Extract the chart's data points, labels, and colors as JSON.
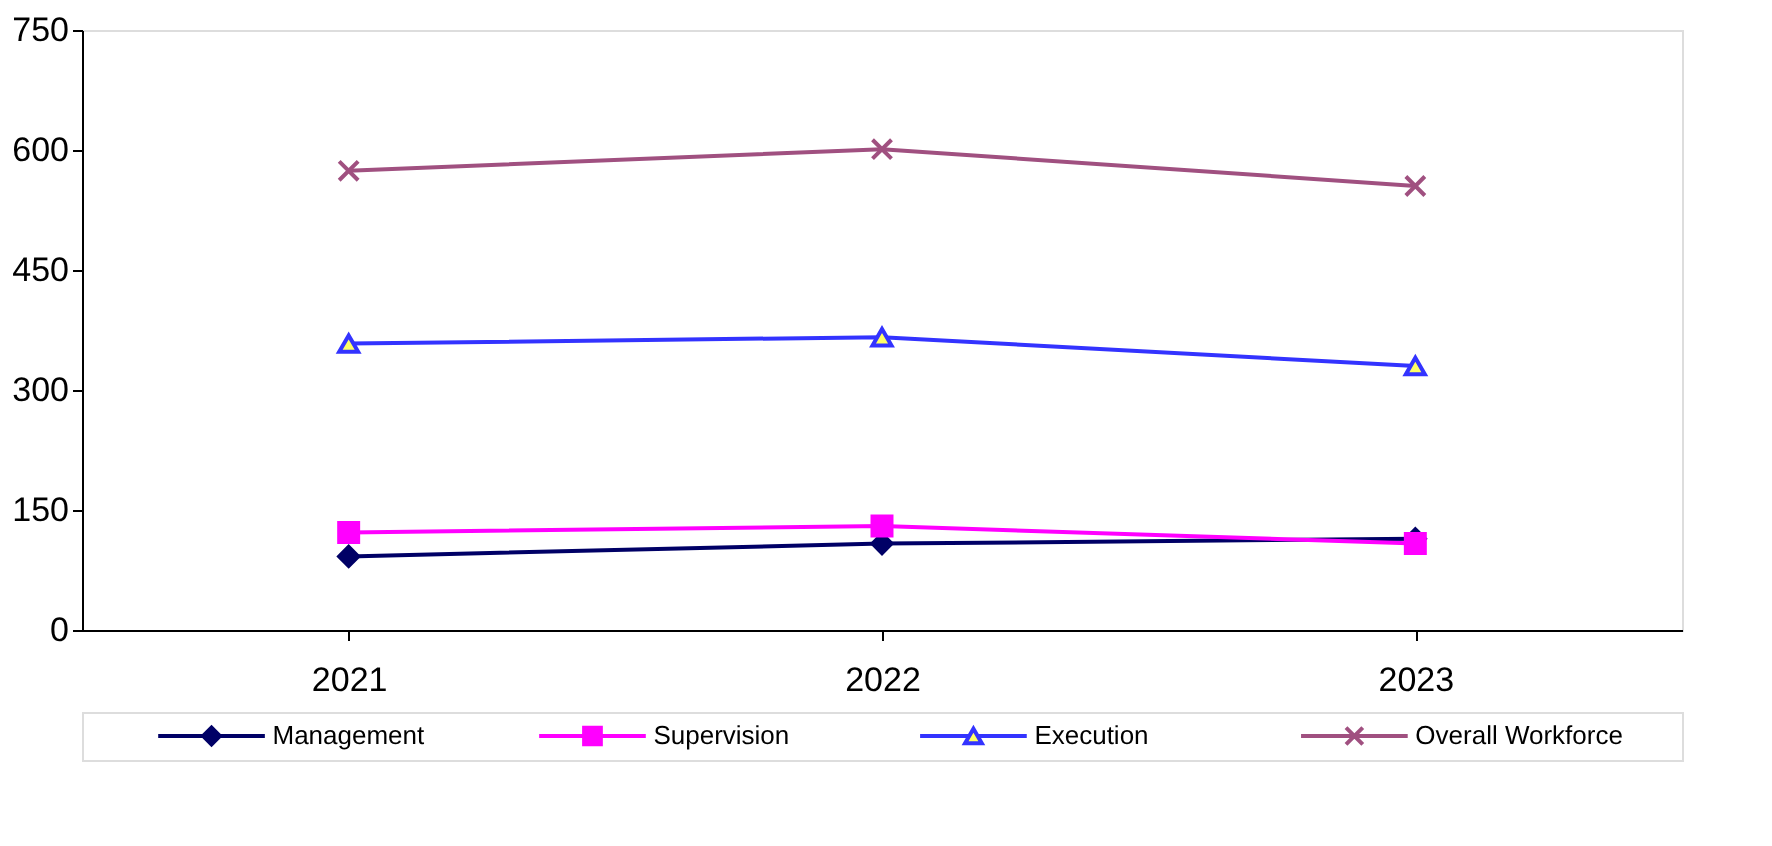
{
  "chart_data": {
    "type": "line",
    "categories": [
      "2021",
      "2022",
      "2023"
    ],
    "ylim": [
      0,
      750
    ],
    "yticks": [
      0,
      150,
      300,
      450,
      600,
      750
    ],
    "grid": false,
    "legend": "bottom",
    "line_style": "solid",
    "series": [
      {
        "name": "Management",
        "color": "#000066",
        "marker": "diamond",
        "values": [
          92,
          108,
          114
        ]
      },
      {
        "name": "Supervision",
        "color": "#ff00ff",
        "marker": "square",
        "values": [
          122,
          130,
          108
        ]
      },
      {
        "name": "Execution",
        "color": "#3333ff",
        "marker": "triangle",
        "values": [
          358,
          366,
          330
        ]
      },
      {
        "name": "Overall Workforce",
        "color": "#a05080",
        "marker": "cross",
        "values": [
          574,
          601,
          555
        ]
      }
    ]
  }
}
